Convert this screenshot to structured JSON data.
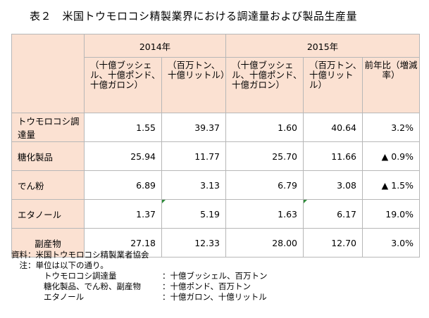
{
  "title": "表２　米国トウモロコシ精製業界における調達量および製品生産量",
  "table": {
    "years": [
      "2014年",
      "2015年"
    ],
    "units": {
      "y2014_a": "（十億ブッシェル、十億ポンド、十億ガロン）",
      "y2014_b": "（百万トン、十億リットル）",
      "y2015_a": "（十億ブッシェル、十億ポンド、十億ガロン）",
      "y2015_b": "（百万トン、十億リットル）",
      "change": "前年比（増減率）"
    },
    "rows": [
      {
        "label": "トウモロコシ調達量",
        "v2014a": "1.55",
        "v2014b": "39.37",
        "v2015a": "1.60",
        "v2015b": "40.64",
        "change": "3.2%"
      },
      {
        "label": "糖化製品",
        "v2014a": "25.94",
        "v2014b": "11.77",
        "v2015a": "25.70",
        "v2015b": "11.66",
        "change": "▲ 0.9%"
      },
      {
        "label": "でん粉",
        "v2014a": "6.89",
        "v2014b": "3.13",
        "v2015a": "6.79",
        "v2015b": "3.08",
        "change": "▲ 1.5%"
      },
      {
        "label": "エタノール",
        "v2014a": "1.37",
        "v2014b": "5.19",
        "v2015a": "1.63",
        "v2015b": "6.17",
        "change": "19.0%"
      },
      {
        "label": "副産物",
        "v2014a": "27.18",
        "v2014b": "12.33",
        "v2015a": "28.00",
        "v2015b": "12.70",
        "change": "3.0%"
      }
    ]
  },
  "notes": {
    "source": "資料：米国トウモロコシ精製業者協会",
    "note_intro": "　注：単位は以下の通り。",
    "unit_lines": [
      {
        "item": "トウモロコシ調達量",
        "unit": "：十億ブッシェル、百万トン"
      },
      {
        "item": "糖化製品、でん粉、副産物",
        "unit": "：十億ポンド、百万トン"
      },
      {
        "item": "エタノール",
        "unit": "：十億ガロン、十億リットル"
      }
    ]
  }
}
